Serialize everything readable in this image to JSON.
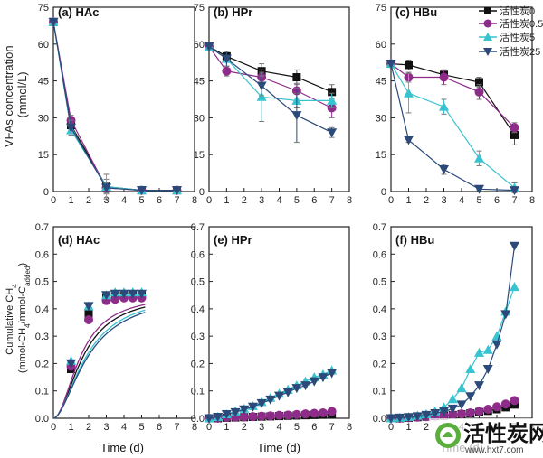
{
  "figure": {
    "row1_ylabel_lines": [
      "VFAs concentration",
      "(mmol/L)"
    ],
    "row2_ylabel_lines": [
      "Cumulative CH",
      "4",
      "(mmol-CH",
      "4",
      "/mmol-C",
      "added",
      ")"
    ],
    "xlabel": "Time (d)"
  },
  "legend": [
    "活性炭0",
    "活性炭0.5",
    "活性炭5",
    "活性炭25"
  ],
  "watermark": {
    "text": "活性炭网",
    "logo_text": "活性炭",
    "url": "www.hxt7.com"
  },
  "chart_data": [
    {
      "type": "line",
      "panel": "(a) HAc",
      "xlim": [
        0,
        8
      ],
      "ylim": [
        0,
        75
      ],
      "xticks": [
        0,
        1,
        2,
        3,
        4,
        5,
        6,
        7,
        8
      ],
      "yticks": [
        0,
        15,
        30,
        45,
        60,
        75
      ],
      "x": [
        0,
        1,
        3,
        5,
        7
      ],
      "series": [
        {
          "name": "活性炭0",
          "color": "#111111",
          "marker": "square",
          "values": [
            69,
            27,
            2,
            0.5,
            0.5
          ],
          "errors": [
            1,
            2,
            3,
            0.5,
            0.5
          ]
        },
        {
          "name": "活性炭0.5",
          "color": "#8e2c8a",
          "marker": "circle",
          "values": [
            69,
            29,
            1.5,
            0.5,
            0.5
          ],
          "errors": [
            1,
            2,
            2,
            0.5,
            0.5
          ]
        },
        {
          "name": "活性炭5",
          "color": "#37c3cf",
          "marker": "triangle-up",
          "values": [
            69,
            25,
            2,
            0.5,
            0.5
          ],
          "errors": [
            1,
            2,
            5,
            0.5,
            0.5
          ]
        },
        {
          "name": "活性炭25",
          "color": "#2b4a7a",
          "marker": "triangle-down",
          "values": [
            69,
            26,
            1.5,
            0.5,
            0.5
          ],
          "errors": [
            1,
            3,
            2,
            0.5,
            0.5
          ]
        }
      ]
    },
    {
      "type": "line",
      "panel": "(b) HPr",
      "xlim": [
        0,
        8
      ],
      "ylim": [
        0,
        75
      ],
      "xticks": [
        0,
        1,
        2,
        3,
        4,
        5,
        6,
        7,
        8
      ],
      "yticks": [
        0,
        15,
        30,
        45,
        60,
        75
      ],
      "x": [
        0,
        1,
        3,
        5,
        7
      ],
      "series": [
        {
          "name": "活性炭0",
          "color": "#111111",
          "marker": "square",
          "values": [
            59,
            55,
            49,
            46.5,
            40.5
          ],
          "errors": [
            1,
            2,
            3,
            3,
            3
          ]
        },
        {
          "name": "活性炭0.5",
          "color": "#8e2c8a",
          "marker": "circle",
          "values": [
            59,
            49,
            46.5,
            41,
            34
          ],
          "errors": [
            1,
            2,
            3,
            3,
            4
          ]
        },
        {
          "name": "活性炭5",
          "color": "#37c3cf",
          "marker": "triangle-up",
          "values": [
            59,
            54,
            38.5,
            37,
            37
          ],
          "errors": [
            1,
            3,
            10,
            3,
            3
          ]
        },
        {
          "name": "活性炭25",
          "color": "#2b4a7a",
          "marker": "triangle-down",
          "values": [
            59,
            54,
            43,
            31,
            24
          ],
          "errors": [
            1,
            3,
            4,
            11,
            2
          ]
        }
      ]
    },
    {
      "type": "line",
      "panel": "(c) HBu",
      "xlim": [
        0,
        8
      ],
      "ylim": [
        0,
        75
      ],
      "xticks": [
        0,
        1,
        2,
        3,
        4,
        5,
        6,
        7,
        8
      ],
      "yticks": [
        0,
        15,
        30,
        45,
        60,
        75
      ],
      "x": [
        0,
        1,
        3,
        5,
        7
      ],
      "series": [
        {
          "name": "活性炭0",
          "color": "#111111",
          "marker": "square",
          "values": [
            52,
            51.5,
            47.5,
            44.5,
            23
          ],
          "errors": [
            1,
            2,
            2,
            2,
            4
          ]
        },
        {
          "name": "活性炭0.5",
          "color": "#8e2c8a",
          "marker": "circle",
          "values": [
            52,
            46.5,
            46.5,
            40.5,
            26
          ],
          "errors": [
            1,
            2,
            3,
            3,
            2
          ]
        },
        {
          "name": "活性炭5",
          "color": "#37c3cf",
          "marker": "triangle-up",
          "values": [
            52,
            40,
            34.5,
            13.5,
            1.5
          ],
          "errors": [
            1,
            8,
            3,
            3,
            2
          ]
        },
        {
          "name": "活性炭25",
          "color": "#2b4a7a",
          "marker": "triangle-down",
          "values": [
            52,
            21,
            9,
            1,
            0.5
          ],
          "errors": [
            1,
            1,
            2,
            0.5,
            0.5
          ]
        }
      ]
    },
    {
      "type": "line",
      "panel": "(d) HAc",
      "xlim": [
        0,
        8
      ],
      "ylim": [
        0,
        0.7
      ],
      "xticks": [
        0,
        1,
        2,
        3,
        4,
        5,
        6,
        7,
        8
      ],
      "yticks": [
        0,
        0.1,
        0.2,
        0.3,
        0.4,
        0.5,
        0.6,
        0.7
      ],
      "x": [
        1,
        2,
        3,
        3.5,
        4,
        4.5,
        5
      ],
      "series": [
        {
          "name": "活性炭0",
          "color": "#111111",
          "marker": "square",
          "values": [
            0.18,
            0.38,
            0.44,
            0.445,
            0.45,
            0.45,
            0.45
          ],
          "fit": [
            0.455,
            1.7,
            1.9
          ]
        },
        {
          "name": "活性炭0.5",
          "color": "#8e2c8a",
          "marker": "circle",
          "values": [
            0.19,
            0.36,
            0.43,
            0.435,
            0.44,
            0.44,
            0.44
          ],
          "fit": [
            0.455,
            1.55,
            1.95
          ]
        },
        {
          "name": "活性炭5",
          "color": "#37c3cf",
          "marker": "triangle-up",
          "values": [
            0.21,
            0.41,
            0.45,
            0.46,
            0.46,
            0.46,
            0.46
          ],
          "fit": [
            0.46,
            1.9,
            1.8
          ]
        },
        {
          "name": "活性炭25",
          "color": "#2b4a7a",
          "marker": "triangle-down",
          "values": [
            0.2,
            0.41,
            0.45,
            0.455,
            0.455,
            0.455,
            0.455
          ],
          "fit": [
            0.46,
            2.0,
            1.75
          ]
        }
      ]
    },
    {
      "type": "line",
      "panel": "(e) HPr",
      "xlim": [
        0,
        8
      ],
      "ylim": [
        0,
        0.7
      ],
      "xticks": [
        0,
        1,
        2,
        3,
        4,
        5,
        6,
        7,
        8
      ],
      "yticks": [
        0,
        0.1,
        0.2,
        0.3,
        0.4,
        0.5,
        0.6,
        0.7
      ],
      "x": [
        0,
        0.5,
        1,
        1.5,
        2,
        2.5,
        3,
        3.5,
        4,
        4.5,
        5,
        5.5,
        6,
        6.5,
        7
      ],
      "series": [
        {
          "name": "活性炭0",
          "color": "#111111",
          "marker": "square",
          "values": [
            0,
            0,
            0.002,
            0.003,
            0.004,
            0.005,
            0.006,
            0.007,
            0.008,
            0.009,
            0.01,
            0.011,
            0.012,
            0.013,
            0.015
          ]
        },
        {
          "name": "活性炭0.5",
          "color": "#8e2c8a",
          "marker": "circle",
          "values": [
            0,
            0,
            0.003,
            0.004,
            0.005,
            0.006,
            0.008,
            0.009,
            0.011,
            0.012,
            0.014,
            0.016,
            0.018,
            0.02,
            0.025
          ]
        },
        {
          "name": "活性炭5",
          "color": "#37c3cf",
          "marker": "triangle-up",
          "values": [
            0,
            0.005,
            0.015,
            0.025,
            0.035,
            0.045,
            0.06,
            0.075,
            0.09,
            0.105,
            0.12,
            0.135,
            0.15,
            0.16,
            0.175
          ]
        },
        {
          "name": "活性炭25",
          "color": "#2b4a7a",
          "marker": "triangle-down",
          "values": [
            0,
            0.005,
            0.015,
            0.022,
            0.032,
            0.042,
            0.055,
            0.068,
            0.082,
            0.095,
            0.11,
            0.12,
            0.135,
            0.15,
            0.165
          ]
        }
      ]
    },
    {
      "type": "line",
      "panel": "(f) HBu",
      "xlim": [
        0,
        8
      ],
      "ylim": [
        0,
        0.7
      ],
      "xticks": [
        0,
        1,
        2,
        3,
        4,
        5,
        6,
        7,
        8
      ],
      "yticks": [
        0,
        0.1,
        0.2,
        0.3,
        0.4,
        0.5,
        0.6,
        0.7
      ],
      "x": [
        0,
        0.5,
        1,
        1.5,
        2,
        2.5,
        3,
        3.5,
        4,
        4.5,
        5,
        5.5,
        6,
        6.5,
        7
      ],
      "series": [
        {
          "name": "活性炭0",
          "color": "#111111",
          "marker": "square",
          "values": [
            0,
            0,
            0.002,
            0.004,
            0.006,
            0.008,
            0.01,
            0.012,
            0.015,
            0.018,
            0.022,
            0.027,
            0.033,
            0.04,
            0.05
          ]
        },
        {
          "name": "活性炭0.5",
          "color": "#8e2c8a",
          "marker": "circle",
          "values": [
            0,
            0,
            0.002,
            0.004,
            0.006,
            0.008,
            0.01,
            0.013,
            0.016,
            0.02,
            0.026,
            0.033,
            0.042,
            0.052,
            0.065
          ]
        },
        {
          "name": "活性炭5",
          "color": "#37c3cf",
          "marker": "triangle-up",
          "values": [
            0,
            0.002,
            0.005,
            0.01,
            0.015,
            0.025,
            0.04,
            0.07,
            0.11,
            0.18,
            0.24,
            0.25,
            0.3,
            0.39,
            0.48
          ]
        },
        {
          "name": "活性炭25",
          "color": "#2b4a7a",
          "marker": "triangle-down",
          "values": [
            0,
            0.002,
            0.004,
            0.007,
            0.012,
            0.018,
            0.025,
            0.035,
            0.05,
            0.08,
            0.12,
            0.18,
            0.27,
            0.38,
            0.63
          ]
        }
      ]
    }
  ]
}
